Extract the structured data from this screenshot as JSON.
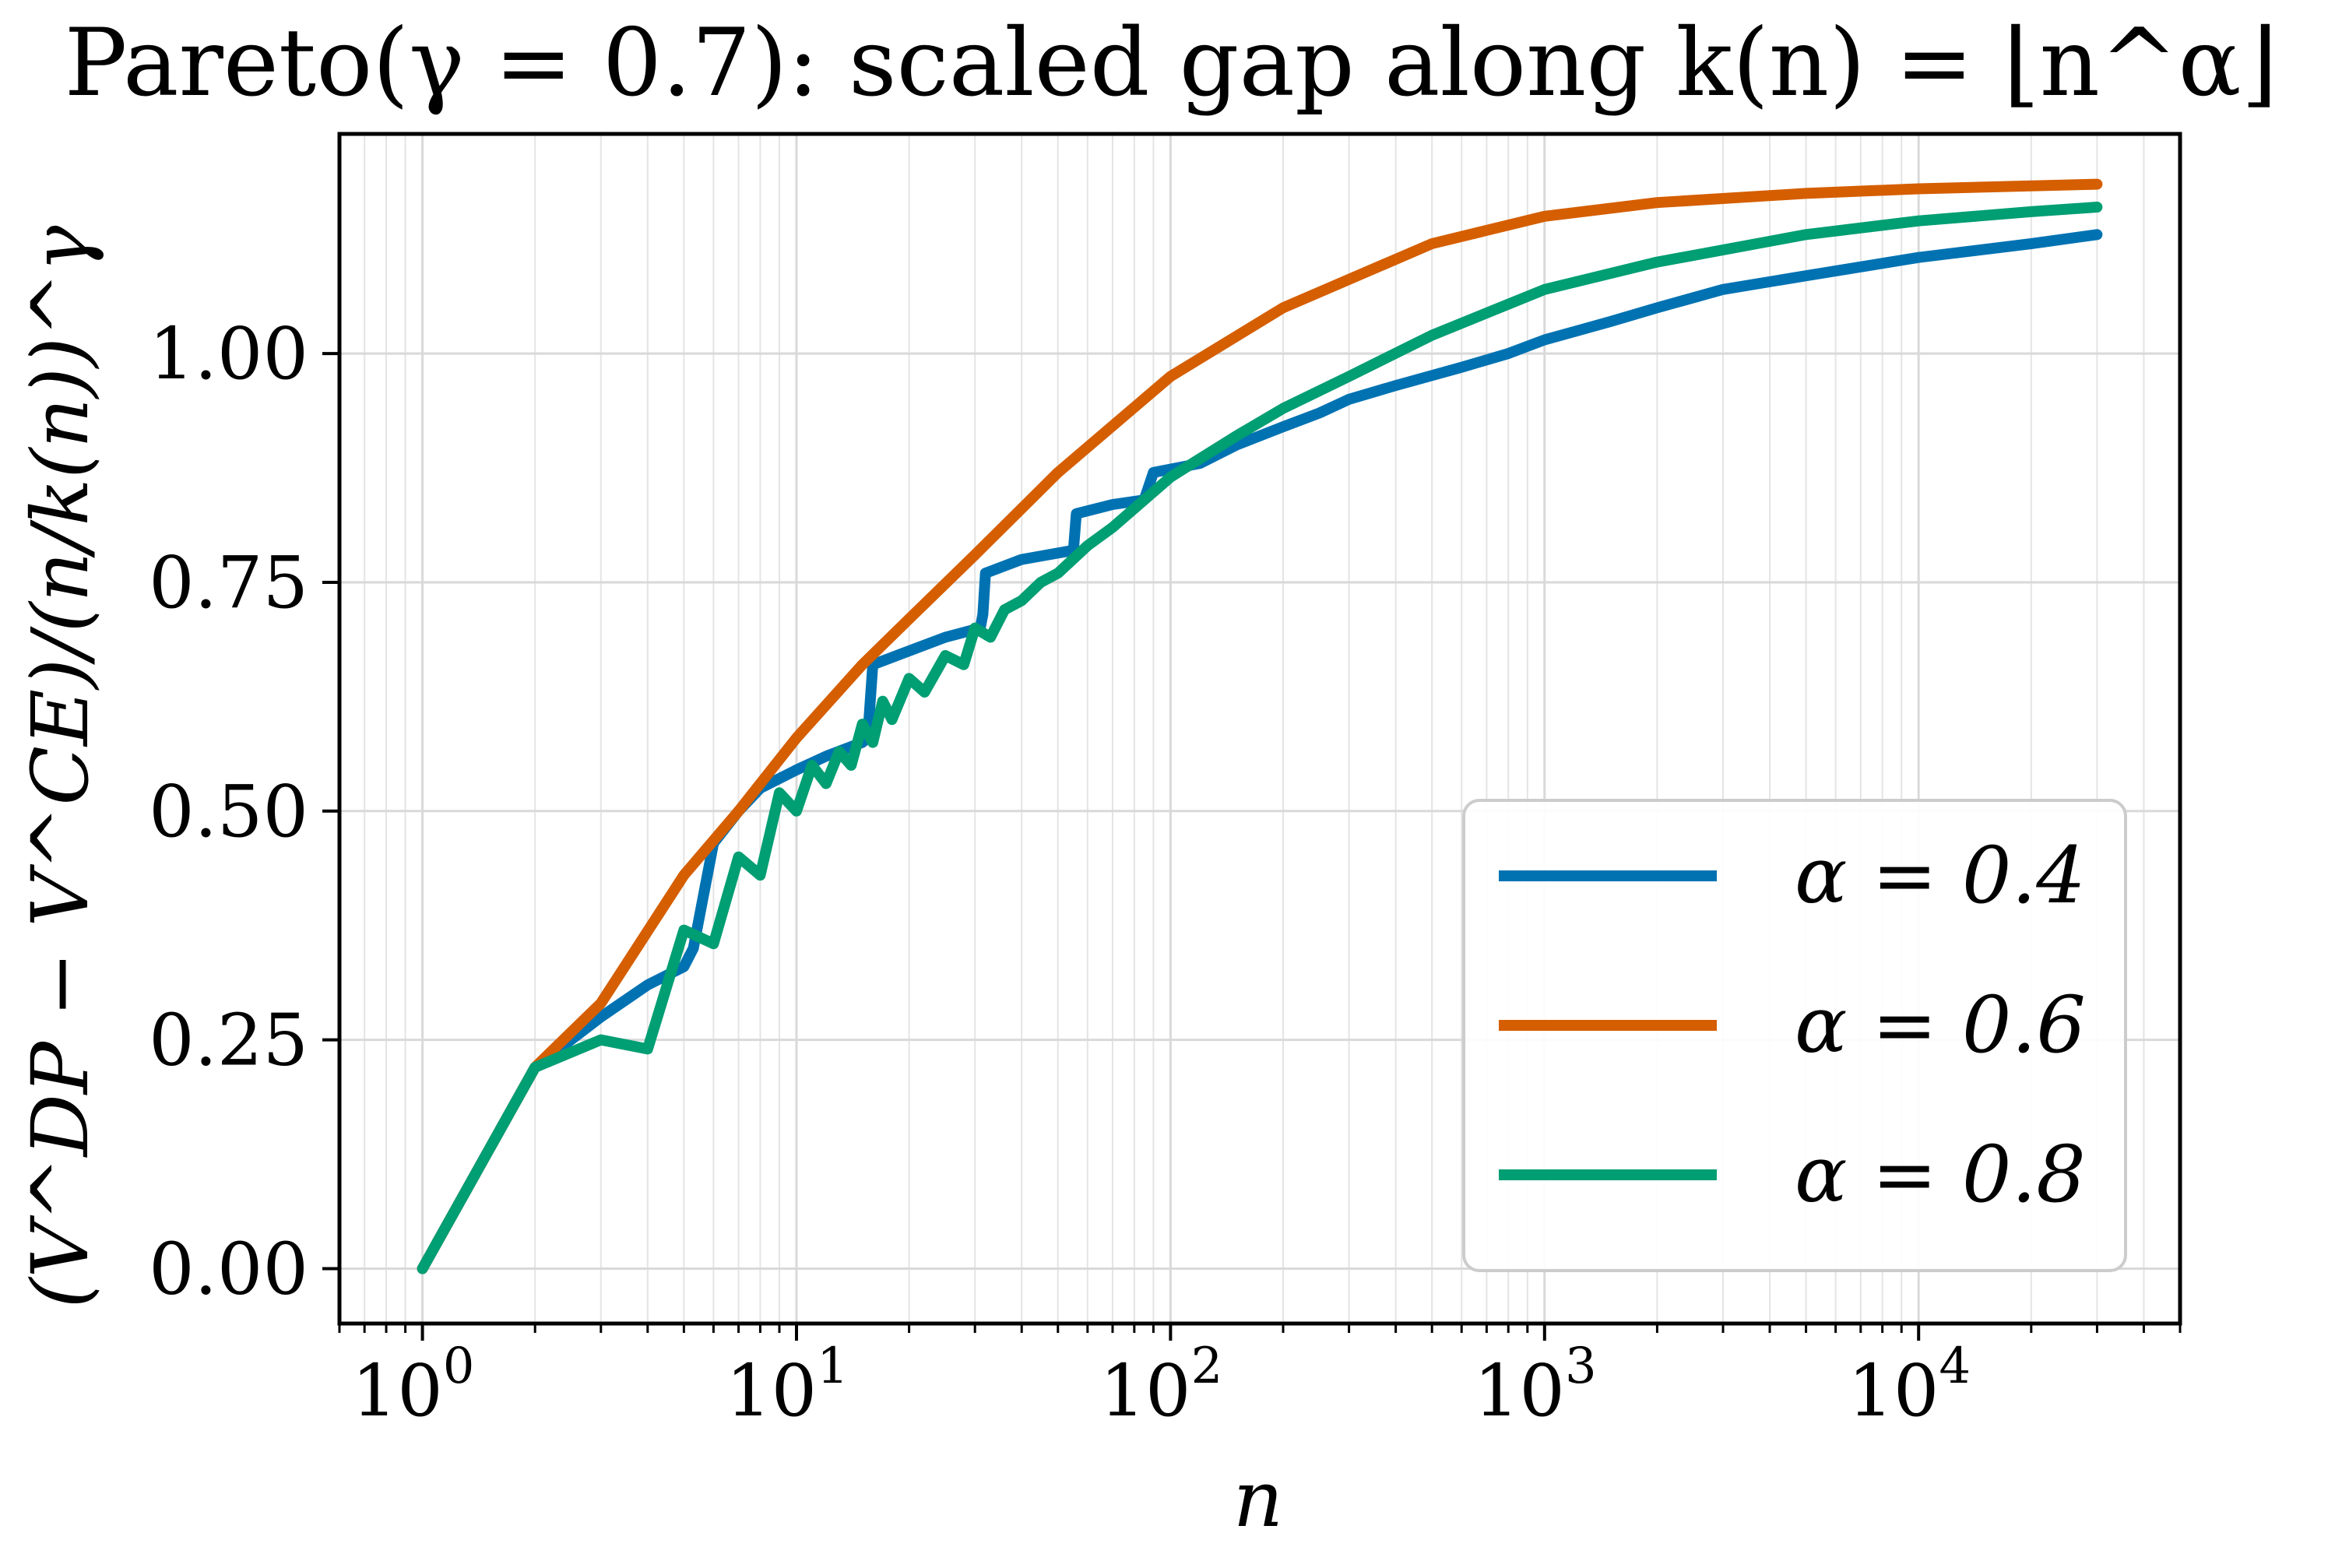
{
  "colors": {
    "alpha_0_4": "#0072B2",
    "alpha_0_6": "#D55E00",
    "alpha_0_8": "#009E73",
    "grid": "#d9d9d9",
    "axes": "#000000",
    "legend_border": "#cccccc"
  },
  "chart_data": {
    "type": "line",
    "title": "Pareto(γ = 0.7): scaled gap along k(n) = ⌊n^α⌋",
    "xlabel": "n",
    "ylabel": "(V^DP − V^CE)/(n/k(n))^γ",
    "x_scale": "log",
    "xlim": [
      0.6,
      50000
    ],
    "ylim": [
      -0.06,
      1.24
    ],
    "grid": true,
    "legend_position": "lower right",
    "x_ticks": [
      {
        "value": 1,
        "base": "10",
        "exp": "0"
      },
      {
        "value": 10,
        "base": "10",
        "exp": "1"
      },
      {
        "value": 100,
        "base": "10",
        "exp": "2"
      },
      {
        "value": 1000,
        "base": "10",
        "exp": "3"
      },
      {
        "value": 10000,
        "base": "10",
        "exp": "4"
      }
    ],
    "y_ticks": [
      {
        "value": 0.0,
        "label": "0.00"
      },
      {
        "value": 0.25,
        "label": "0.25"
      },
      {
        "value": 0.5,
        "label": "0.50"
      },
      {
        "value": 0.75,
        "label": "0.75"
      },
      {
        "value": 1.0,
        "label": "1.00"
      }
    ],
    "series": [
      {
        "name": "α = 0.4",
        "color_key": "alpha_0_4",
        "x": [
          1,
          2,
          3,
          4,
          5,
          5.3,
          6,
          7,
          8,
          10,
          12,
          15,
          15.5,
          16,
          20,
          25,
          31,
          31.5,
          32,
          40,
          55,
          56,
          70,
          85,
          90,
          120,
          150,
          200,
          250,
          300,
          400,
          600,
          800,
          1000,
          1500,
          2000,
          3000,
          5000,
          10000,
          20000,
          30000
        ],
        "y": [
          0.0,
          0.22,
          0.275,
          0.31,
          0.33,
          0.35,
          0.465,
          0.5,
          0.525,
          0.545,
          0.56,
          0.575,
          0.58,
          0.66,
          0.675,
          0.69,
          0.7,
          0.715,
          0.76,
          0.775,
          0.785,
          0.825,
          0.835,
          0.84,
          0.87,
          0.88,
          0.9,
          0.92,
          0.935,
          0.95,
          0.965,
          0.985,
          1.0,
          1.015,
          1.035,
          1.05,
          1.07,
          1.085,
          1.105,
          1.12,
          1.13
        ]
      },
      {
        "name": "α = 0.6",
        "color_key": "alpha_0_6",
        "x": [
          1,
          2,
          3,
          5,
          7,
          10,
          15,
          20,
          30,
          50,
          100,
          200,
          500,
          1000,
          2000,
          5000,
          10000,
          30000
        ],
        "y": [
          0.0,
          0.22,
          0.29,
          0.43,
          0.5,
          0.58,
          0.66,
          0.71,
          0.78,
          0.87,
          0.975,
          1.05,
          1.12,
          1.15,
          1.165,
          1.175,
          1.18,
          1.185
        ]
      },
      {
        "name": "α = 0.8",
        "color_key": "alpha_0_8",
        "x": [
          1,
          2,
          3,
          4,
          5,
          6,
          7,
          8,
          9,
          10,
          11,
          12,
          13,
          14,
          15,
          16,
          17,
          18,
          20,
          22,
          25,
          28,
          30,
          33,
          36,
          40,
          45,
          50,
          60,
          70,
          85,
          100,
          150,
          200,
          300,
          500,
          1000,
          2000,
          5000,
          10000,
          20000,
          30000
        ],
        "y": [
          0.0,
          0.22,
          0.25,
          0.24,
          0.37,
          0.355,
          0.45,
          0.43,
          0.52,
          0.5,
          0.55,
          0.53,
          0.565,
          0.55,
          0.595,
          0.575,
          0.62,
          0.6,
          0.645,
          0.63,
          0.67,
          0.66,
          0.7,
          0.69,
          0.72,
          0.73,
          0.75,
          0.76,
          0.79,
          0.81,
          0.84,
          0.865,
          0.91,
          0.94,
          0.975,
          1.02,
          1.07,
          1.1,
          1.13,
          1.145,
          1.155,
          1.16
        ]
      }
    ]
  }
}
